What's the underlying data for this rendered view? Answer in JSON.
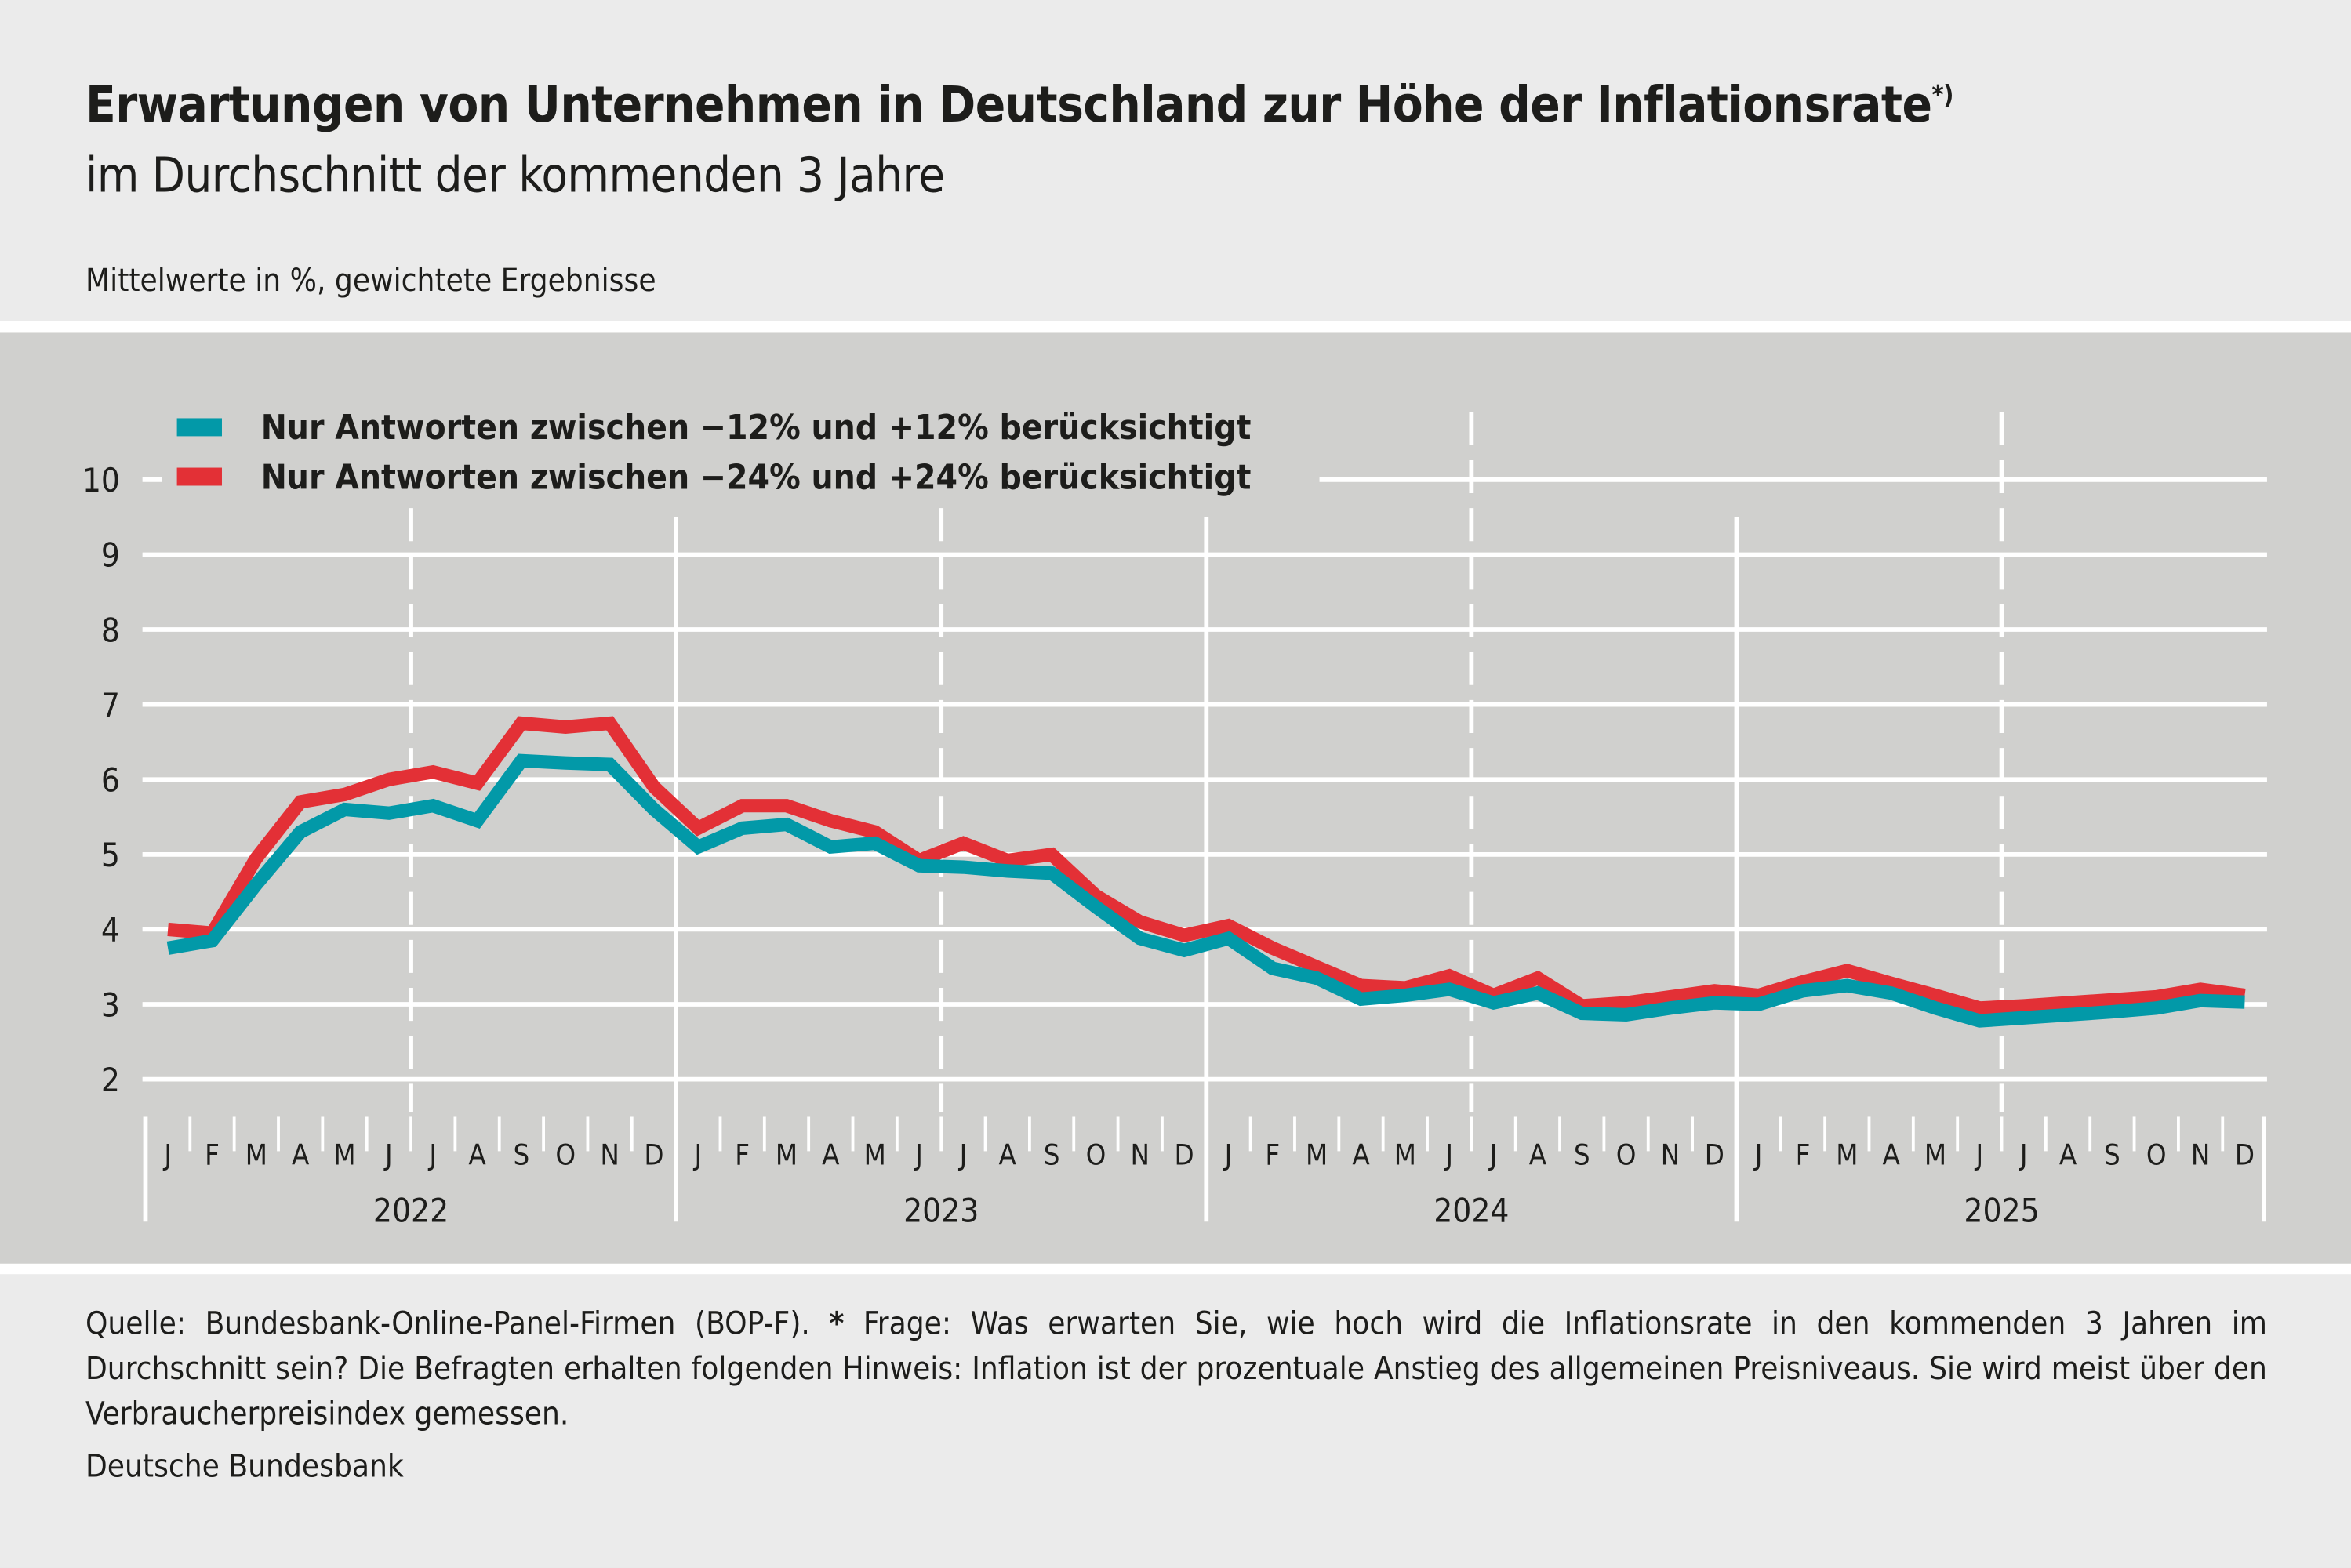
{
  "header": {
    "title": "Erwartungen von Unternehmen in Deutschland zur Höhe der Inflationsrate",
    "title_marker": "*)",
    "subtitle": "im Durchschnitt der kommenden 3 Jahre",
    "unit_note": "Mittelwerte in %, gewichtete Ergebnisse"
  },
  "footer": {
    "source_prefix": "Quelle: Bundesbank-Online-Panel-Firmen (BOP-F).",
    "star": "*",
    "source_text": "Frage: Was erwarten Sie, wie hoch wird die Inflationsrate in den kommenden 3 Jahren im Durchschnitt sein? Die Befragten erhalten folgenden Hinweis: Inflation ist der prozentuale Anstieg des allgemeinen Preisniveaus. Sie wird meist über den Verbraucherpreisindex gemessen.",
    "publisher": "Deutsche Bundesbank"
  },
  "chart_data": {
    "type": "line",
    "title": "Erwartungen von Unternehmen in Deutschland zur Höhe der Inflationsrate",
    "xlabel": "",
    "ylabel": "",
    "ylim": [
      2,
      10
    ],
    "yticks": [
      2,
      3,
      4,
      5,
      6,
      7,
      8,
      9,
      10
    ],
    "grid": true,
    "legend_position": "top-left",
    "month_labels": [
      "J",
      "F",
      "M",
      "A",
      "M",
      "J",
      "J",
      "A",
      "S",
      "O",
      "N",
      "D"
    ],
    "years": [
      "2022",
      "2023",
      "2024",
      "2025"
    ],
    "series": [
      {
        "name": "Nur Antworten zwischen −12% und +12% berücksichtigt",
        "color": "#0299a8",
        "values": [
          3.75,
          3.85,
          4.6,
          5.3,
          5.6,
          5.55,
          5.65,
          5.45,
          6.25,
          6.22,
          6.2,
          5.6,
          5.1,
          5.35,
          5.4,
          5.1,
          5.15,
          4.85,
          4.83,
          4.78,
          4.75,
          4.3,
          3.88,
          3.72,
          3.88,
          3.48,
          3.35,
          3.07,
          3.12,
          3.2,
          3.02,
          3.15,
          2.88,
          2.86,
          2.95,
          3.02,
          3.0,
          3.18,
          3.25,
          3.15,
          2.95,
          2.78,
          2.82,
          2.86,
          2.9,
          2.95,
          3.05,
          3.03
        ]
      },
      {
        "name": "Nur Antworten zwischen −24% und +24% berücksichtigt",
        "color": "#e33036",
        "values": [
          4.0,
          3.95,
          4.95,
          5.7,
          5.8,
          6.0,
          6.1,
          5.95,
          6.75,
          6.7,
          6.75,
          5.9,
          5.35,
          5.65,
          5.65,
          5.45,
          5.3,
          4.92,
          5.15,
          4.92,
          5.0,
          4.45,
          4.1,
          3.92,
          4.05,
          3.75,
          3.5,
          3.25,
          3.22,
          3.38,
          3.12,
          3.35,
          2.98,
          3.02,
          3.1,
          3.18,
          3.12,
          3.3,
          3.45,
          3.28,
          3.12,
          2.95,
          2.98,
          3.02,
          3.06,
          3.1,
          3.2,
          3.12
        ]
      }
    ]
  }
}
